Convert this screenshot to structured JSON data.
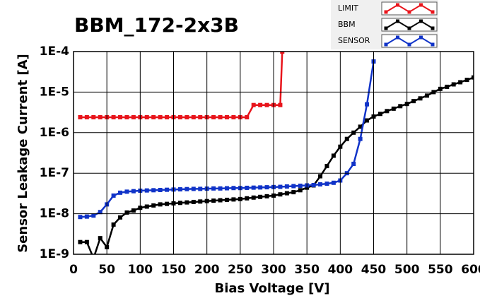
{
  "chart_data": {
    "type": "line",
    "title": "BBM_172-2x3B",
    "x_label": "Bias Voltage [V]",
    "y_label": "Sensor Leakage Current [A]",
    "log_y": true,
    "grid": true,
    "legend": "top-right",
    "xlim": [
      0,
      600
    ],
    "xticks": [
      0,
      50,
      100,
      150,
      200,
      250,
      300,
      350,
      400,
      450,
      500,
      550,
      600
    ],
    "ylim": [
      1e-09,
      0.0001
    ],
    "yticks": [
      {
        "value": 1e-09,
        "label": "1E-9"
      },
      {
        "value": 1e-08,
        "label": "1E-8"
      },
      {
        "value": 1e-07,
        "label": "1E-7"
      },
      {
        "value": 1e-06,
        "label": "1E-6"
      },
      {
        "value": 1e-05,
        "label": "1E-5"
      },
      {
        "value": 0.0001,
        "label": "1E-4"
      }
    ],
    "series": [
      {
        "name": "LIMIT",
        "color": "#e8141b",
        "x": [
          10,
          20,
          30,
          40,
          50,
          60,
          70,
          80,
          90,
          100,
          110,
          120,
          130,
          140,
          150,
          160,
          170,
          180,
          190,
          200,
          210,
          220,
          230,
          240,
          250,
          260,
          270,
          280,
          290,
          300,
          310,
          313
        ],
        "values": [
          2.4e-06,
          2.4e-06,
          2.4e-06,
          2.4e-06,
          2.4e-06,
          2.4e-06,
          2.4e-06,
          2.4e-06,
          2.4e-06,
          2.4e-06,
          2.4e-06,
          2.4e-06,
          2.4e-06,
          2.4e-06,
          2.4e-06,
          2.4e-06,
          2.4e-06,
          2.4e-06,
          2.4e-06,
          2.4e-06,
          2.4e-06,
          2.4e-06,
          2.4e-06,
          2.4e-06,
          2.4e-06,
          2.4e-06,
          4.8e-06,
          4.8e-06,
          4.8e-06,
          4.8e-06,
          4.8e-06,
          0.0001
        ]
      },
      {
        "name": "BBM",
        "color": "#000000",
        "x": [
          10,
          20,
          30,
          40,
          50,
          60,
          70,
          80,
          90,
          100,
          110,
          120,
          130,
          140,
          150,
          160,
          170,
          180,
          190,
          200,
          210,
          220,
          230,
          240,
          250,
          260,
          270,
          280,
          290,
          300,
          310,
          320,
          330,
          340,
          350,
          360,
          370,
          380,
          390,
          400,
          410,
          420,
          430,
          440,
          450,
          460,
          470,
          480,
          490,
          500,
          510,
          520,
          530,
          540,
          550,
          560,
          570,
          580,
          590,
          600
        ],
        "values": [
          2e-09,
          2e-09,
          8e-10,
          2.5e-09,
          1.5e-09,
          5.4e-09,
          8.1e-09,
          1.07e-08,
          1.2e-08,
          1.4e-08,
          1.5e-08,
          1.6e-08,
          1.7e-08,
          1.75e-08,
          1.8e-08,
          1.85e-08,
          1.9e-08,
          1.95e-08,
          2e-08,
          2.05e-08,
          2.1e-08,
          2.15e-08,
          2.2e-08,
          2.25e-08,
          2.3e-08,
          2.4e-08,
          2.5e-08,
          2.6e-08,
          2.7e-08,
          2.8e-08,
          3e-08,
          3.2e-08,
          3.4e-08,
          3.8e-08,
          4.4e-08,
          5e-08,
          8.4e-08,
          1.5e-07,
          2.7e-07,
          4.5e-07,
          7e-07,
          1e-06,
          1.4e-06,
          2e-06,
          2.5e-06,
          2.9e-06,
          3.4e-06,
          3.9e-06,
          4.5e-06,
          5.1e-06,
          6e-06,
          7e-06,
          8.2e-06,
          1e-05,
          1.2e-05,
          1.35e-05,
          1.55e-05,
          1.75e-05,
          2e-05,
          2.3e-05
        ]
      },
      {
        "name": "SENSOR",
        "color": "#1033c8",
        "x": [
          10,
          20,
          30,
          40,
          50,
          60,
          70,
          80,
          90,
          100,
          110,
          120,
          130,
          140,
          150,
          160,
          170,
          180,
          190,
          200,
          210,
          220,
          230,
          240,
          250,
          260,
          270,
          280,
          290,
          300,
          310,
          320,
          330,
          340,
          350,
          360,
          370,
          380,
          390,
          400,
          410,
          420,
          430,
          440,
          450
        ],
        "values": [
          8.3e-09,
          8.5e-09,
          9e-09,
          1.1e-08,
          1.7e-08,
          2.8e-08,
          3.3e-08,
          3.5e-08,
          3.6e-08,
          3.7e-08,
          3.75e-08,
          3.8e-08,
          3.85e-08,
          3.9e-08,
          3.95e-08,
          4e-08,
          4.05e-08,
          4.1e-08,
          4.1e-08,
          4.15e-08,
          4.2e-08,
          4.2e-08,
          4.25e-08,
          4.3e-08,
          4.3e-08,
          4.35e-08,
          4.4e-08,
          4.45e-08,
          4.5e-08,
          4.55e-08,
          4.6e-08,
          4.7e-08,
          4.8e-08,
          4.9e-08,
          5e-08,
          5.1e-08,
          5.3e-08,
          5.5e-08,
          5.8e-08,
          6.6e-08,
          1e-07,
          1.7e-07,
          7e-07,
          5e-06,
          5.7e-05
        ]
      }
    ]
  }
}
